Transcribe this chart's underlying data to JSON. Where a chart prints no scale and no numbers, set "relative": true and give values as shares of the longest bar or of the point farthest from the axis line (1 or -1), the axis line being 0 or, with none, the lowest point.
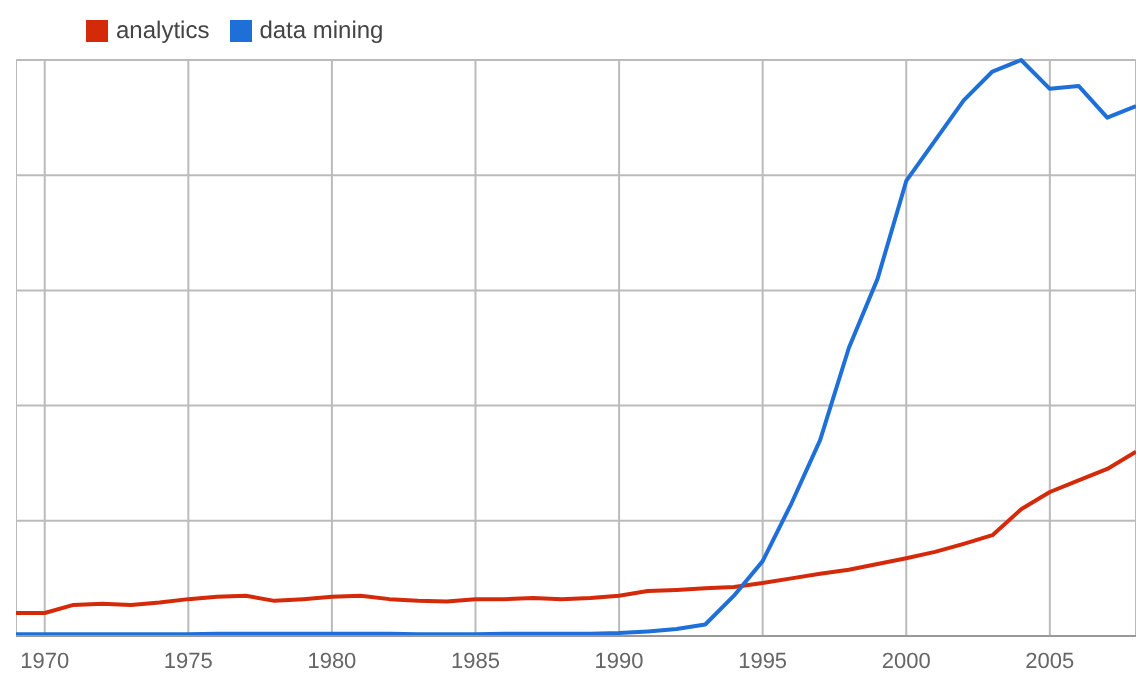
{
  "chart_data": {
    "type": "line",
    "relative": true,
    "x": [
      1969,
      1970,
      1971,
      1972,
      1973,
      1974,
      1975,
      1976,
      1977,
      1978,
      1979,
      1980,
      1981,
      1982,
      1983,
      1984,
      1985,
      1986,
      1987,
      1988,
      1989,
      1990,
      1991,
      1992,
      1993,
      1994,
      1995,
      1996,
      1997,
      1998,
      1999,
      2000,
      2001,
      2002,
      2003,
      2004,
      2005,
      2006,
      2007,
      2008
    ],
    "xlim": [
      1969,
      2008
    ],
    "xticks": [
      1970,
      1975,
      1980,
      1985,
      1990,
      1995,
      2000,
      2005
    ],
    "series": [
      {
        "name": "analytics",
        "color": "#d42a0a",
        "values": [
          0.04,
          0.04,
          0.054,
          0.056,
          0.054,
          0.058,
          0.064,
          0.068,
          0.07,
          0.061,
          0.064,
          0.068,
          0.07,
          0.064,
          0.061,
          0.06,
          0.064,
          0.064,
          0.066,
          0.064,
          0.066,
          0.07,
          0.078,
          0.08,
          0.083,
          0.085,
          0.092,
          0.1,
          0.108,
          0.115,
          0.125,
          0.135,
          0.146,
          0.16,
          0.175,
          0.22,
          0.25,
          0.27,
          0.29,
          0.32
        ]
      },
      {
        "name": "data mining",
        "color": "#1f6fd9",
        "values": [
          0.003,
          0.003,
          0.003,
          0.003,
          0.003,
          0.003,
          0.003,
          0.004,
          0.004,
          0.004,
          0.004,
          0.004,
          0.004,
          0.004,
          0.003,
          0.003,
          0.003,
          0.004,
          0.004,
          0.004,
          0.004,
          0.005,
          0.008,
          0.012,
          0.02,
          0.07,
          0.13,
          0.23,
          0.34,
          0.5,
          0.62,
          0.79,
          0.86,
          0.93,
          0.98,
          1,
          0.95,
          0.955,
          0.9,
          0.92
        ]
      }
    ],
    "grid": true,
    "legend": "top left",
    "marker": "none",
    "line_style": "solid"
  }
}
